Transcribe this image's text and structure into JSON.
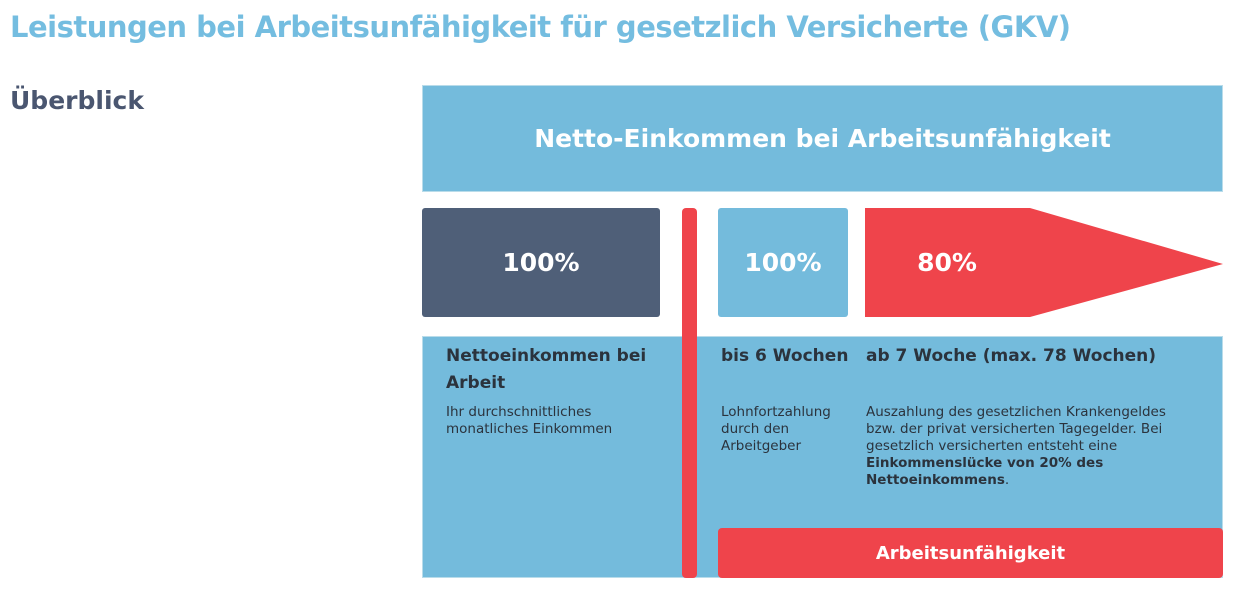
{
  "title": "Leistungen bei Arbeitsunfähigkeit für gesetzlich Versicherte (GKV)",
  "section": "Überblick",
  "banner": "Netto-Einkommen bei Arbeitsunfähigkeit",
  "columns": [
    {
      "percent": "100%",
      "heading": "Nettoeinkommen bei Arbeit",
      "text": "Ihr durchschnittliches monatliches Einkommen"
    },
    {
      "percent": "100%",
      "heading": "bis 6 Wochen",
      "text": "Lohnfortzahlung durch den Arbeitgeber"
    },
    {
      "percent": "80%",
      "heading": "ab 7 Woche (max. 78 Wochen)",
      "text": "Auszahlung des gesetzlichen Krankengeldes bzw. der privat versicherten Tagegelder. Bei gesetzlich versicherten entsteht eine ",
      "emphasis": "Einkommenslücke von 20% des Nettoeinkommens",
      "text_end": "."
    }
  ],
  "footer_label": "Arbeitsunfähigkeit"
}
